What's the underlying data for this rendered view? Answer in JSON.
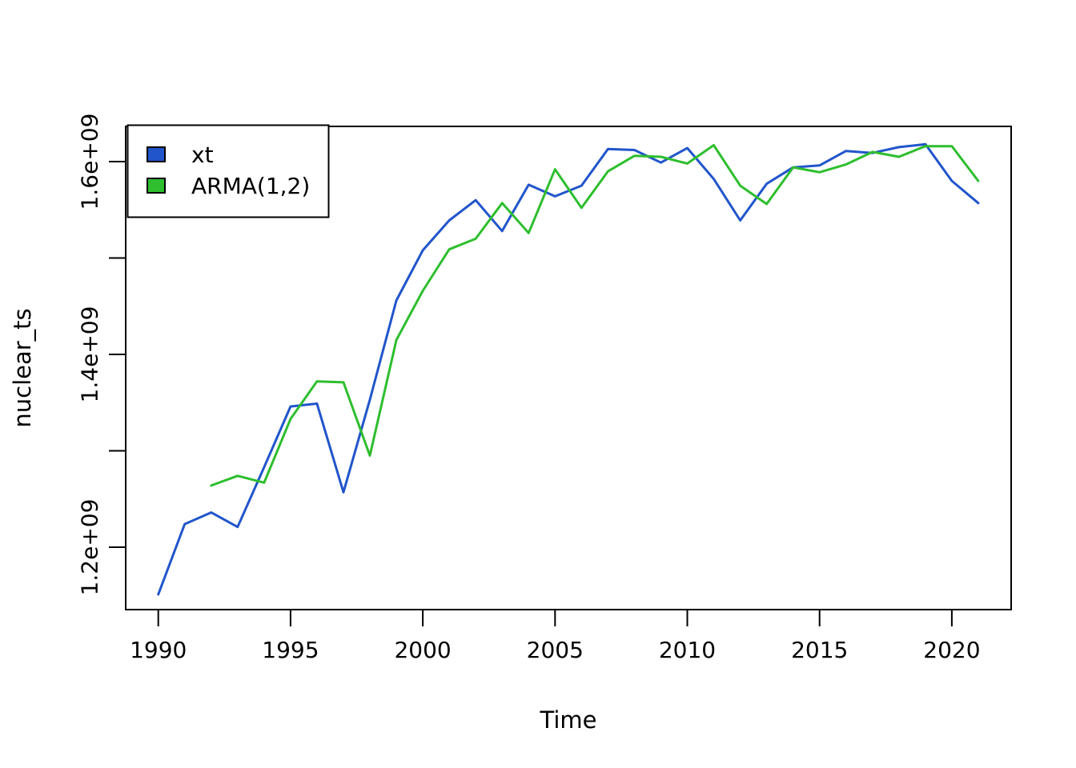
{
  "figure": {
    "background": "#ffffff",
    "xlabel": "Time",
    "ylabel": "nuclear_ts"
  },
  "legend": {
    "position": "topleft",
    "items": [
      {
        "label": "xt",
        "color": "#2155CB"
      },
      {
        "label": "ARMA(1,2)",
        "color": "#2EBE2E"
      }
    ]
  },
  "chart_data": {
    "type": "line",
    "title": "",
    "xlabel": "Time",
    "ylabel": "nuclear_ts",
    "grid": false,
    "legend_position": "topleft",
    "xlim": [
      1988.8,
      2022.3
    ],
    "ylim": [
      1133000000.0,
      1636500000.0
    ],
    "x_ticks": [
      1990,
      1995,
      2000,
      2005,
      2010,
      2015,
      2020
    ],
    "y_ticks": [
      {
        "v": 1200000000.0,
        "label": "1.2e+09"
      },
      {
        "v": 1300000000.0,
        "label": ""
      },
      {
        "v": 1400000000.0,
        "label": "1.4e+09"
      },
      {
        "v": 1500000000.0,
        "label": ""
      },
      {
        "v": 1600000000.0,
        "label": "1.6e+09"
      }
    ],
    "series": [
      {
        "name": "xt",
        "color": "#2155CB",
        "x": [
          1990,
          1991,
          1992,
          1993,
          1994,
          1995,
          1996,
          1997,
          1998,
          1999,
          2000,
          2001,
          2002,
          2003,
          2004,
          2005,
          2006,
          2007,
          2008,
          2009,
          2010,
          2011,
          2012,
          2013,
          2014,
          2015,
          2016,
          2017,
          2018,
          2019,
          2020,
          2021
        ],
        "y": [
          1151000000.0,
          1224000000.0,
          1236000000.0,
          1221000000.0,
          1283000000.0,
          1346000000.0,
          1349000000.0,
          1257000000.0,
          1353000000.0,
          1456000000.0,
          1508000000.0,
          1539000000.0,
          1560000000.0,
          1528000000.0,
          1576000000.0,
          1564000000.0,
          1575000000.0,
          1613000000.0,
          1612000000.0,
          1599000000.0,
          1614000000.0,
          1582000000.0,
          1539000000.0,
          1577000000.0,
          1594000000.0,
          1596000000.0,
          1611000000.0,
          1609000000.0,
          1615000000.0,
          1618000000.0,
          1580000000.0,
          1557000000.0
        ]
      },
      {
        "name": "ARMA(1,2)",
        "color": "#2EBE2E",
        "x": [
          1992,
          1993,
          1994,
          1995,
          1996,
          1997,
          1998,
          1999,
          2000,
          2001,
          2002,
          2003,
          2004,
          2005,
          2006,
          2007,
          2008,
          2009,
          2010,
          2011,
          2012,
          2013,
          2014,
          2015,
          2016,
          2017,
          2018,
          2019,
          2020,
          2021
        ],
        "y": [
          1264000000.0,
          1274000000.0,
          1267000000.0,
          1333000000.0,
          1372000000.0,
          1371000000.0,
          1295000000.0,
          1415000000.0,
          1466000000.0,
          1509000000.0,
          1520000000.0,
          1557000000.0,
          1526000000.0,
          1592000000.0,
          1552000000.0,
          1590000000.0,
          1606000000.0,
          1605000000.0,
          1598000000.0,
          1617000000.0,
          1575000000.0,
          1556000000.0,
          1594000000.0,
          1589000000.0,
          1597000000.0,
          1610000000.0,
          1605000000.0,
          1616000000.0,
          1616000000.0,
          1580000000.0
        ]
      }
    ]
  }
}
